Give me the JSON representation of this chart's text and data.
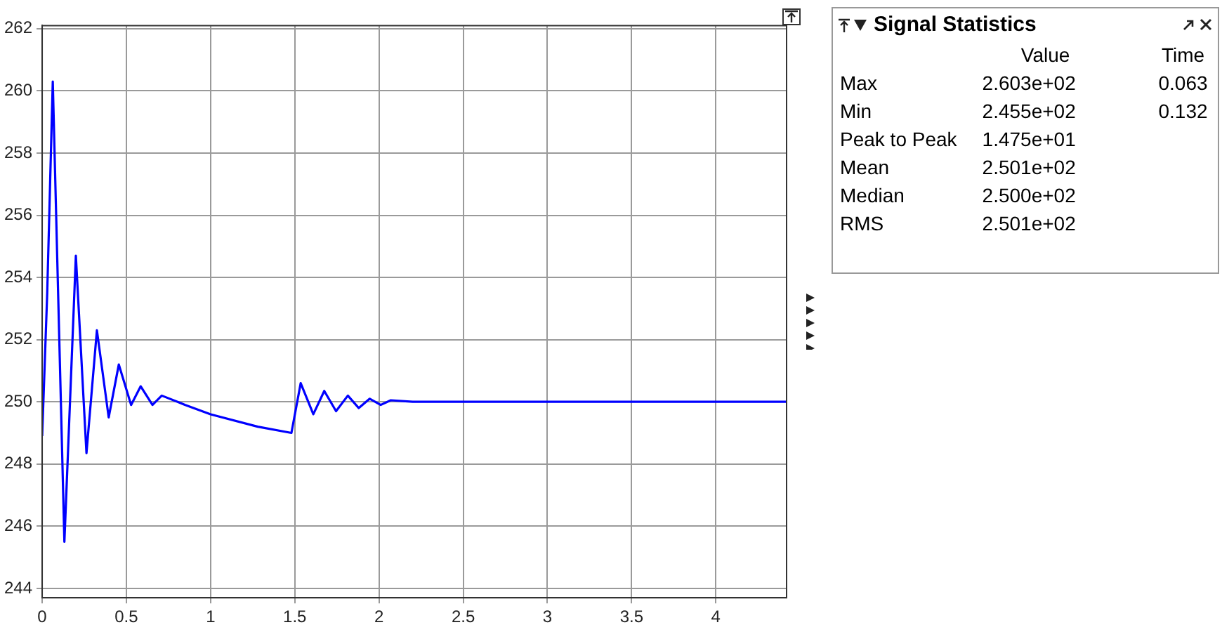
{
  "chart_data": [
    {
      "type": "line",
      "x": [
        0,
        0.03,
        0.063,
        0.132,
        0.2,
        0.263,
        0.325,
        0.395,
        0.455,
        0.528,
        0.585,
        0.655,
        0.71,
        0.85,
        1.0,
        1.28,
        1.48,
        1.535,
        1.61,
        1.675,
        1.745,
        1.815,
        1.88,
        1.945,
        2.01,
        2.07,
        2.2,
        3.0,
        4.0,
        4.42
      ],
      "series": [
        {
          "color": "#0000ff",
          "values": [
            248.9,
            253.5,
            260.3,
            245.5,
            254.7,
            248.35,
            252.3,
            249.5,
            251.2,
            249.9,
            250.5,
            249.9,
            250.2,
            249.9,
            249.6,
            249.2,
            249.0,
            250.6,
            249.6,
            250.35,
            249.7,
            250.2,
            249.8,
            250.1,
            249.9,
            250.05,
            250.0,
            250.0,
            250.0,
            250.0
          ]
        }
      ],
      "xlim": [
        0,
        4.42
      ],
      "xticks": [
        0,
        0.5,
        1,
        1.5,
        2,
        2.5,
        3,
        3.5,
        4
      ],
      "ylim": [
        243.7,
        262.1
      ],
      "yticks": [
        244,
        246,
        248,
        250,
        252,
        254,
        256,
        258,
        260,
        262
      ],
      "grid": true,
      "legend": false,
      "marker": "none",
      "line_style": "solid"
    },
    {
      "type": "other",
      "title": "Signal Statistics",
      "categories": [
        "Value",
        "Time"
      ],
      "y_categories": [
        "Max",
        "Min",
        "Peak to Peak",
        "Mean",
        "Median",
        "RMS"
      ],
      "cell_labels": [
        [
          "2.603e+02",
          "0.063"
        ],
        [
          "2.455e+02",
          "0.132"
        ],
        [
          "1.475e+01",
          null
        ],
        [
          "2.501e+02",
          null
        ],
        [
          "2.500e+02",
          null
        ],
        [
          "2.501e+02",
          null
        ]
      ]
    }
  ]
}
